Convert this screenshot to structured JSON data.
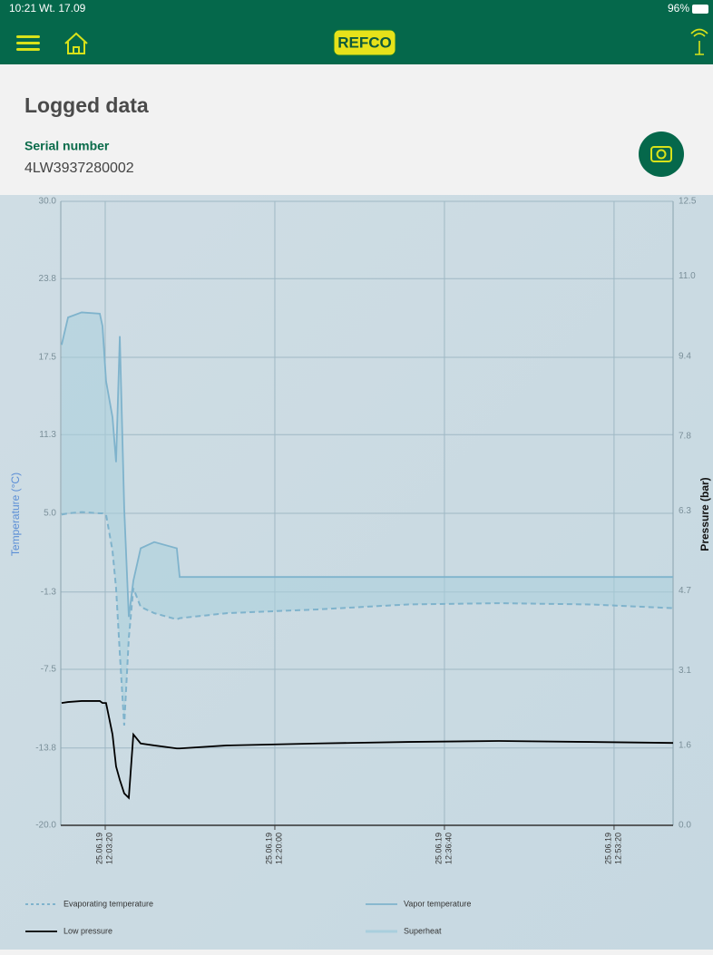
{
  "status_bar": {
    "time": "10:21",
    "date": "Wt. 17.09",
    "battery": "96%"
  },
  "header": {
    "logo": "REFCO"
  },
  "page": {
    "title": "Logged data",
    "serial_label": "Serial number",
    "serial": "4LW3937280002"
  },
  "chart_data": {
    "type": "line",
    "ylabel": "Temperature (°C)",
    "y2label": "Pressure (bar)",
    "x": [
      "11:59:03",
      "11:59:41",
      "12:01:01",
      "12:02:48",
      "12:03:04",
      "12:03:25",
      "12:04:03",
      "12:04:24",
      "12:04:46",
      "12:05:12",
      "12:05:39",
      "12:06:06",
      "12:06:49",
      "12:08:09",
      "12:10:22",
      "12:10:39",
      "12:15:17",
      "12:24:11",
      "12:33:06",
      "12:42:01",
      "12:50:56",
      "12:59:08"
    ],
    "xlim": [
      "11:58:58",
      "12:59:08"
    ],
    "xticks": [
      {
        "value": "12:03:20",
        "label": [
          "25.06.19",
          "12:03:20"
        ]
      },
      {
        "value": "12:20:00",
        "label": [
          "25.06.19",
          "12:20:00"
        ]
      },
      {
        "value": "12:36:40",
        "label": [
          "25.06.19",
          "12:36:40"
        ]
      },
      {
        "value": "12:53:20",
        "label": [
          "25.06.19",
          "12:53:20"
        ]
      }
    ],
    "ylim": [
      -20,
      30
    ],
    "yticks": [
      {
        "value": 30,
        "label": "30.0"
      },
      23.8,
      17.5,
      11.3,
      {
        "value": 5,
        "label": "5.0"
      },
      -1.3,
      -7.5,
      -13.8,
      {
        "value": -20,
        "label": "-20.0"
      }
    ],
    "y2lim": [
      0,
      12.5
    ],
    "y2ticks": [
      12.5,
      {
        "value": 11,
        "label": "11.0"
      },
      9.4,
      7.8,
      6.3,
      4.7,
      3.1,
      1.6,
      {
        "value": 0,
        "label": "0.0"
      }
    ],
    "grid": true,
    "series": [
      {
        "name": "Evaporating temperature",
        "color": "#7fb3cc",
        "kind": "dashed",
        "values": [
          4.9,
          5.0,
          5.1,
          5.0,
          5.0,
          4.9,
          2.0,
          -1.0,
          -6.2,
          -12.0,
          -5.0,
          -1.0,
          -2.5,
          -3.0,
          -3.5,
          -3.4,
          -3.0,
          -2.7,
          -2.3,
          -2.2,
          -2.3,
          -2.6
        ]
      },
      {
        "name": "Vapor temperature",
        "color": "#7fb3cc",
        "kind": "line",
        "values": [
          18.5,
          20.7,
          21.1,
          21.0,
          20.0,
          15.6,
          12.7,
          9.1,
          19.2,
          5.4,
          -3.3,
          -0.4,
          2.2,
          2.7,
          2.2,
          -0.1,
          -0.1,
          -0.1,
          -0.1,
          -0.1,
          -0.1,
          -0.1
        ]
      },
      {
        "name": "Low pressure",
        "color": "#000000",
        "kind": "line",
        "axis": "y2",
        "values": [
          2.45,
          2.47,
          2.49,
          2.49,
          2.45,
          2.45,
          1.82,
          1.18,
          0.91,
          0.64,
          0.55,
          1.82,
          1.64,
          1.6,
          1.54,
          1.54,
          1.6,
          1.64,
          1.67,
          1.69,
          1.67,
          1.65
        ]
      },
      {
        "name": "Superheat",
        "color": "#a9cfdd",
        "kind": "area",
        "values": [
          13.6,
          15.7,
          16.0,
          16.0,
          15.0,
          10.7,
          10.7,
          10.1,
          25.4,
          17.4,
          1.7,
          0.6,
          4.7,
          5.7,
          5.7,
          3.3,
          2.9,
          2.6,
          2.2,
          2.1,
          2.2,
          2.5
        ]
      }
    ]
  }
}
